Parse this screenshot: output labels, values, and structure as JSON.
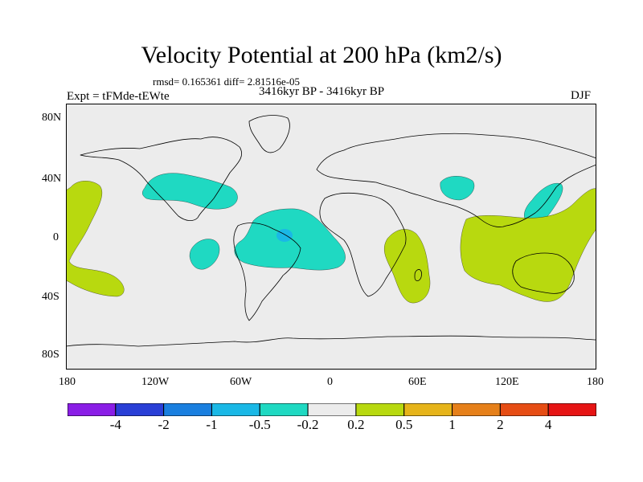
{
  "title": "Velocity Potential at 200 hPa (km2/s)",
  "stats": "rmsd= 0.165361 diff= 2.81516e-05",
  "experiment": "Expt = tFMde-tEWte",
  "period": "3416kyr BP - 3416kyr BP",
  "season": "DJF",
  "lat_ticks": [
    "80N",
    "40N",
    "0",
    "40S",
    "80S"
  ],
  "lon_ticks": [
    "180",
    "120W",
    "60W",
    "0",
    "60E",
    "120E",
    "180"
  ],
  "colorbar": {
    "labels": [
      "-4",
      "-2",
      "-1",
      "-0.5",
      "-0.2",
      "0.2",
      "0.5",
      "1",
      "2",
      "4"
    ],
    "colors": [
      "#8a1ee6",
      "#2a3fd6",
      "#1a7fdf",
      "#1ab8e6",
      "#1fd9c2",
      "#ececec",
      "#b8d90f",
      "#e6b41a",
      "#e6801a",
      "#e64d14",
      "#e61414"
    ]
  },
  "chart_data": {
    "type": "contour-map",
    "title": "Velocity Potential at 200 hPa (km2/s)",
    "projection": "cylindrical equidistant",
    "lon_range": [
      -180,
      180
    ],
    "lat_range": [
      -90,
      90
    ],
    "levels": [
      -4,
      -2,
      -1,
      -0.5,
      -0.2,
      0.2,
      0.5,
      1,
      2,
      4
    ],
    "background_class": "-0.2 to 0.2",
    "regions": [
      {
        "name": "north-america-atlantic-low",
        "class": "-0.5 to -0.2",
        "center": [
          -90,
          30
        ]
      },
      {
        "name": "tropical-atlantic-low",
        "class": "-0.5 to -0.2",
        "center": [
          -35,
          0
        ]
      },
      {
        "name": "tropical-atlantic-core",
        "class": "-1 to -0.5",
        "center": [
          -32,
          0
        ]
      },
      {
        "name": "east-pacific-low",
        "class": "-0.5 to -0.2",
        "center": [
          -97,
          -10
        ]
      },
      {
        "name": "himalaya-low",
        "class": "-0.5 to -0.2",
        "center": [
          88,
          32
        ]
      },
      {
        "name": "west-pacific-low",
        "class": "-0.5 to -0.2",
        "center": [
          140,
          22
        ]
      },
      {
        "name": "central-pacific-high",
        "class": "0.2 to 0.5",
        "center": [
          -165,
          -5
        ]
      },
      {
        "name": "east-africa-indian-high",
        "class": "0.2 to 0.5",
        "center": [
          58,
          -15
        ]
      },
      {
        "name": "maritime-continent-high",
        "class": "0.2 to 0.5",
        "center": [
          130,
          -15
        ]
      }
    ]
  }
}
